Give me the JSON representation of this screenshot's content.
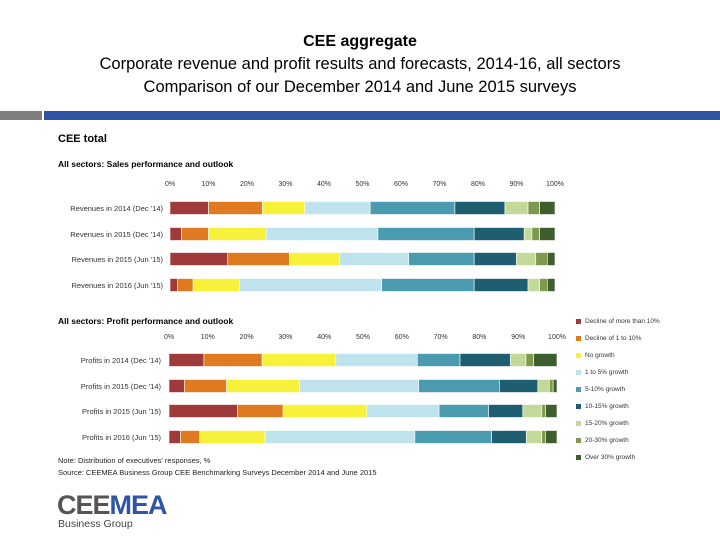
{
  "header": {
    "title": "CEE aggregate",
    "subtitle": "Corporate revenue and profit results and forecasts, 2014-16, all sectors",
    "subtitle2": "Comparison of our December 2014 and June 2015 surveys"
  },
  "panel_title": "CEE total",
  "colors": [
    "#9e3a3a",
    "#e07a20",
    "#f7f13a",
    "#bfe3ec",
    "#4a9ab0",
    "#1f5e70",
    "#c2d99a",
    "#7d9a4c",
    "#3e5e2e"
  ],
  "legend": [
    "Decline of more than 10%",
    "Decline of 1 to 10%",
    "No growth",
    "1 to 5% growth",
    "5-10% growth",
    "10-15% growth",
    "15-20% growth",
    "20-30% growth",
    "Over 30% growth"
  ],
  "chart_data": [
    {
      "type": "bar",
      "orientation": "horizontal-stacked-100",
      "title": "All sectors: Sales performance and outlook",
      "ticks": [
        "0%",
        "10%",
        "20%",
        "30%",
        "40%",
        "50%",
        "60%",
        "70%",
        "80%",
        "90%",
        "100%"
      ],
      "categories": [
        "Revenues in 2014 (Dec '14)",
        "Revenues in 2015 (Dec '14)",
        "Revenues in 2015 (Jun '15)",
        "Revenues in 2016 (Jun '15)"
      ],
      "series": [
        {
          "name": "Decline of more than 10%",
          "values": [
            10,
            3,
            15,
            2
          ]
        },
        {
          "name": "Decline of 1 to 10%",
          "values": [
            14,
            7,
            16,
            4
          ]
        },
        {
          "name": "No growth",
          "values": [
            11,
            15,
            13,
            12
          ]
        },
        {
          "name": "1 to 5% growth",
          "values": [
            17,
            29,
            18,
            37
          ]
        },
        {
          "name": "5-10% growth",
          "values": [
            22,
            25,
            17,
            24
          ]
        },
        {
          "name": "10-15% growth",
          "values": [
            13,
            13,
            11,
            14
          ]
        },
        {
          "name": "15-20% growth",
          "values": [
            6,
            2,
            5,
            3
          ]
        },
        {
          "name": "20-30% growth",
          "values": [
            3,
            2,
            3,
            2
          ]
        },
        {
          "name": "Over 30% growth",
          "values": [
            4,
            4,
            2,
            2
          ]
        }
      ]
    },
    {
      "type": "bar",
      "orientation": "horizontal-stacked-100",
      "title": "All sectors: Profit performance and outlook",
      "ticks": [
        "0%",
        "10%",
        "20%",
        "30%",
        "40%",
        "50%",
        "60%",
        "70%",
        "80%",
        "90%",
        "100%"
      ],
      "categories": [
        "Profits in 2014 (Dec '14)",
        "Profits in 2015 (Dec '14)",
        "Profits in 2015 (Jun '15)",
        "Profits in 2016 (Jun '15)"
      ],
      "series": [
        {
          "name": "Decline of more than 10%",
          "values": [
            9,
            4,
            18,
            3
          ]
        },
        {
          "name": "Decline of 1 to 10%",
          "values": [
            15,
            11,
            12,
            5
          ]
        },
        {
          "name": "No growth",
          "values": [
            19,
            19,
            22,
            17
          ]
        },
        {
          "name": "1 to 5% growth",
          "values": [
            21,
            31,
            19,
            39
          ]
        },
        {
          "name": "5-10% growth",
          "values": [
            11,
            21,
            13,
            20
          ]
        },
        {
          "name": "10-15% growth",
          "values": [
            13,
            10,
            9,
            9
          ]
        },
        {
          "name": "15-20% growth",
          "values": [
            4,
            3,
            5,
            4
          ]
        },
        {
          "name": "20-30% growth",
          "values": [
            2,
            1,
            1,
            1
          ]
        },
        {
          "name": "Over 30% growth",
          "values": [
            6,
            1,
            3,
            3
          ]
        }
      ]
    }
  ],
  "notes": {
    "note": "Note: Distribution of executives' responses, %",
    "source": "Source: CEEMEA Business Group CEE Benchmarking Surveys December 2014 and June 2015"
  },
  "logo": {
    "part1": "CEE",
    "part2": "MEA",
    "sub": "Business Group"
  }
}
